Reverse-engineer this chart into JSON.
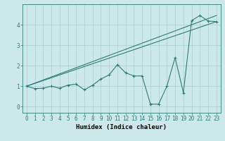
{
  "title": "",
  "xlabel": "Humidex (Indice chaleur)",
  "bg_color": "#cce8e8",
  "line_color": "#2e7d72",
  "grid_color": "#aacfcf",
  "xlim": [
    -0.5,
    23.5
  ],
  "ylim": [
    -0.3,
    5.0
  ],
  "xticks": [
    0,
    1,
    2,
    3,
    4,
    5,
    6,
    7,
    8,
    9,
    10,
    11,
    12,
    13,
    14,
    15,
    16,
    17,
    18,
    19,
    20,
    21,
    22,
    23
  ],
  "yticks": [
    0,
    1,
    2,
    3,
    4
  ],
  "line1_x": [
    0,
    1,
    2,
    3,
    4,
    5,
    6,
    7,
    8,
    9,
    10,
    11,
    12,
    13,
    14,
    15,
    16,
    17,
    18,
    19,
    20,
    21,
    22,
    23
  ],
  "line1_y": [
    1.0,
    0.88,
    0.9,
    1.0,
    0.9,
    1.05,
    1.1,
    0.82,
    1.05,
    1.35,
    1.55,
    2.05,
    1.65,
    1.5,
    1.5,
    0.13,
    0.12,
    1.0,
    2.4,
    0.68,
    4.2,
    4.45,
    4.18,
    4.15
  ],
  "line2_x": [
    0,
    23
  ],
  "line2_y": [
    1.0,
    4.45
  ],
  "line3_x": [
    0,
    23
  ],
  "line3_y": [
    1.0,
    4.15
  ],
  "markersize": 2.5,
  "linewidth": 0.8,
  "xlabel_fontsize": 6.5,
  "tick_fontsize": 5.5
}
